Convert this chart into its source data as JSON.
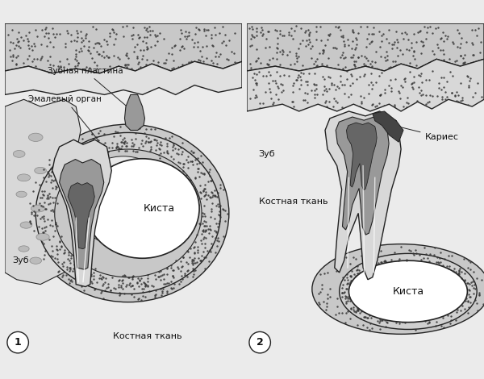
{
  "bg_color": "#ebebeb",
  "bone_dotted_color": "#c8c8c8",
  "gum_color": "#d8d8d8",
  "tissue_color": "#e0e0e0",
  "cyst_wall_dotted": "#b8b8b8",
  "fill_light_gray": "#d8d8d8",
  "fill_medium_gray": "#999999",
  "fill_dark_gray": "#666666",
  "fill_white": "#ffffff",
  "outline_color": "#222222",
  "text_color": "#111111",
  "line_width": 1.0,
  "labels_panel1": {
    "zub_plastina": "Зубная пластина",
    "enamel_organ": "Эмалевый орган",
    "kysta": "Киста",
    "zub": "Зуб",
    "kostnaya": "Костная ткань"
  },
  "labels_panel2": {
    "karies": "Кариес",
    "zub": "Зуб",
    "kostnaya": "Костная ткань",
    "kysta": "Киста"
  },
  "num1": "1",
  "num2": "2"
}
